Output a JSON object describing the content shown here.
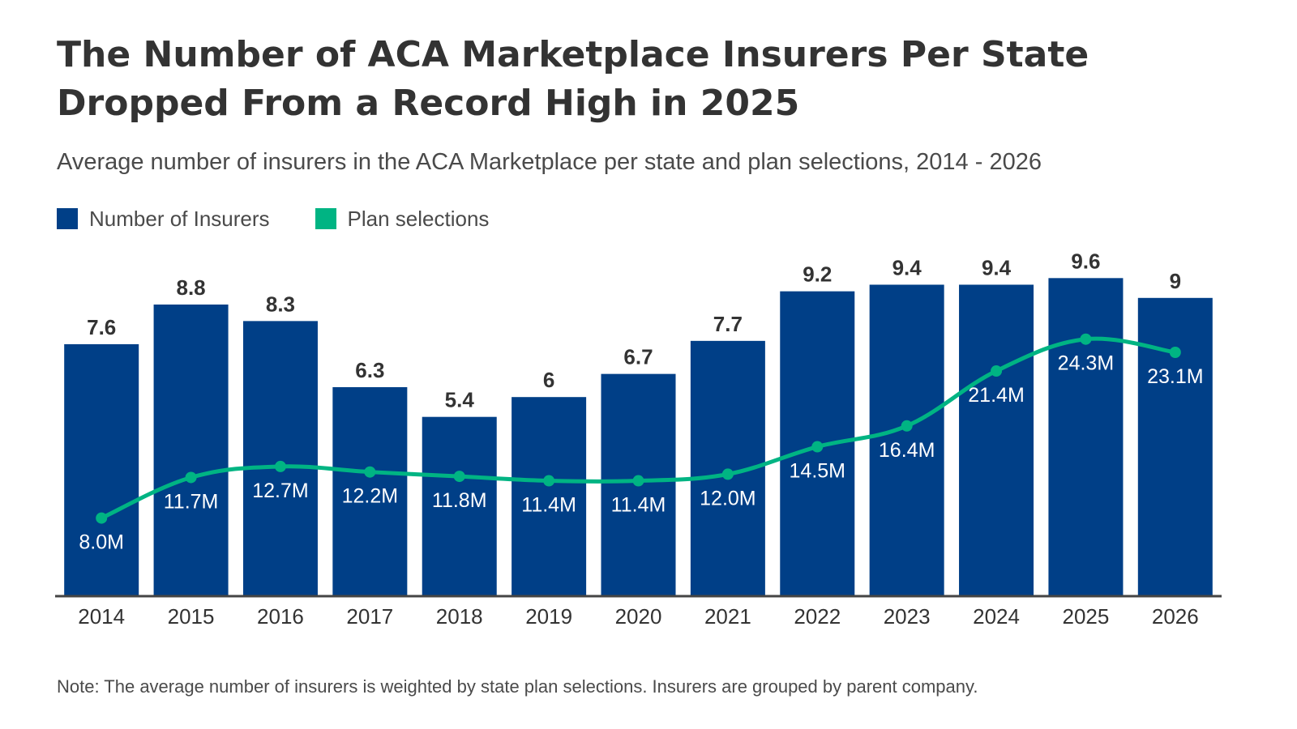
{
  "title": "The Number of ACA Marketplace Insurers Per State Dropped From a Record High in 2025",
  "subtitle": "Average number of insurers in the ACA Marketplace per state and plan selections, 2014 - 2026",
  "note": "Note: The average number of insurers is weighted by state plan selections. Insurers are grouped by parent company.",
  "colors": {
    "bar": "#003f87",
    "line": "#00b483",
    "axis": "#444444"
  },
  "legend": [
    {
      "label": "Number of Insurers",
      "color": "#003f87"
    },
    {
      "label": "Plan selections",
      "color": "#00b483"
    }
  ],
  "chart_data": {
    "type": "bar",
    "categories": [
      "2014",
      "2015",
      "2016",
      "2017",
      "2018",
      "2019",
      "2020",
      "2021",
      "2022",
      "2023",
      "2024",
      "2025",
      "2026"
    ],
    "series": [
      {
        "name": "Number of Insurers",
        "type": "bar",
        "values": [
          7.6,
          8.8,
          8.3,
          6.3,
          5.4,
          6,
          6.7,
          7.7,
          9.2,
          9.4,
          9.4,
          9.6,
          9
        ],
        "labels": [
          "7.6",
          "8.8",
          "8.3",
          "6.3",
          "5.4",
          "6",
          "6.7",
          "7.7",
          "9.2",
          "9.4",
          "9.4",
          "9.6",
          "9"
        ]
      },
      {
        "name": "Plan selections",
        "type": "line",
        "values": [
          8.0,
          11.7,
          12.7,
          12.2,
          11.8,
          11.4,
          11.4,
          12.0,
          14.5,
          16.4,
          21.4,
          24.3,
          23.1
        ],
        "labels": [
          "8.0M",
          "11.7M",
          "12.7M",
          "12.2M",
          "11.8M",
          "11.4M",
          "11.4M",
          "12.0M",
          "14.5M",
          "16.4M",
          "21.4M",
          "24.3M",
          "23.1M"
        ]
      }
    ],
    "xlabel": "",
    "ylabel": "",
    "bar_ylim": [
      0,
      10
    ],
    "line_ylim": [
      0,
      40
    ],
    "grid": false,
    "legend_position": "top-left"
  }
}
